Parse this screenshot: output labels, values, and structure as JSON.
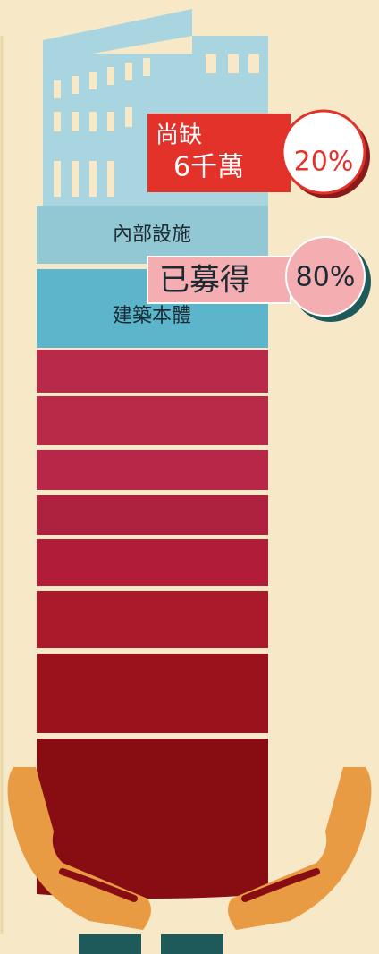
{
  "shortfall": {
    "label": "尚缺",
    "amount": "6千萬",
    "percent": "20%"
  },
  "segments": {
    "interior": "內部設施",
    "structure": "建築本體"
  },
  "raised": {
    "label": "已募得",
    "percent": "80%"
  }
}
